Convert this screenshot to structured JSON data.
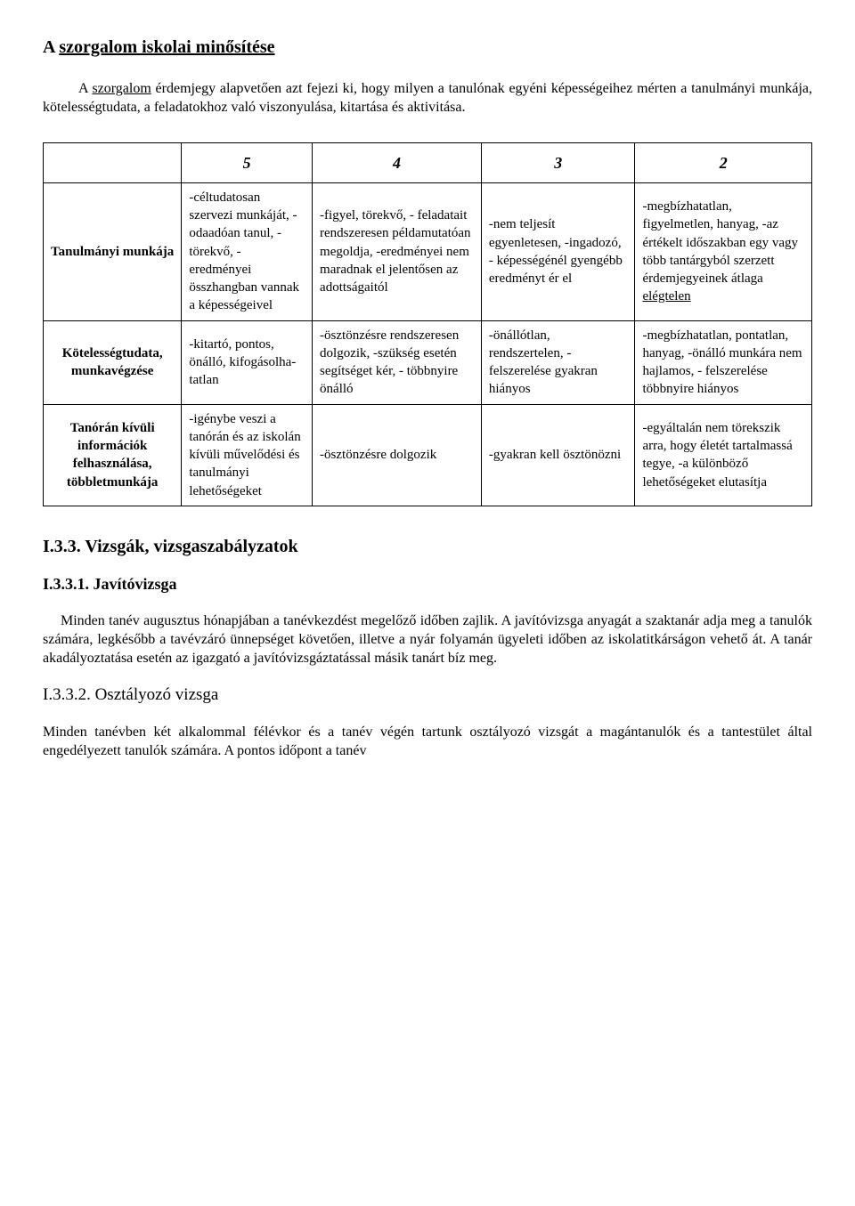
{
  "title_prefix": "A ",
  "title_underlined": "szorgalom iskolai minősítése",
  "intro_prefix": "A ",
  "intro_underlined": "szorgalom",
  "intro_rest": " érdemjegy alapvetően azt fejezi ki, hogy milyen a tanulónak egyéni képességeihez mérten a tanulmányi munkája, kötelességtudata, a feladatokhoz való viszonyulása, kitartása és aktivitása.",
  "grades": [
    "5",
    "4",
    "3",
    "2"
  ],
  "rows": [
    {
      "label": "Tanulmányi munkája",
      "c5": "-céltudatosan szervezi munkáját,\n-odaadóan tanul,\n-törekvő, -\neredményei összhangban vannak a képességeivel",
      "c4": "-figyel, törekvő, -\nfeladatait rendszeresen példamutatóan megoldja,\n-eredményei nem maradnak el jelentősen az adottságaitól",
      "c3": "-nem teljesít egyenletesen,\n-ingadozó, -\nképességénél gyengébb eredményt ér el",
      "c2_plain": "-megbízhatatlan, figyelmetlen, hanyag,\n-az értékelt időszakban egy vagy több tantárgyból szerzett érdemjegyeinek átlaga ",
      "c2_underlined": "elégtelen"
    },
    {
      "label": "Kötelességtudata, munkavégzése",
      "c5": "-kitartó, pontos, önálló, kifogásolha-\ntatlan",
      "c4": "-ösztönzésre rendszeresen dolgozik,\n-szükség esetén segítséget kér, -\ntöbbnyire önálló",
      "c3": "-önállótlan, rendszertelen, -\nfelszerelése gyakran hiányos",
      "c2_plain": "-megbízhatatlan, pontatlan, hanyag,\n-önálló munkára nem hajlamos, -\nfelszerelése többnyire hiányos",
      "c2_underlined": ""
    },
    {
      "label": "Tanórán kívüli információk felhasználása, többletmunkája",
      "c5": "-igénybe veszi a tanórán és az iskolán kívüli művelődési és tanulmányi lehetőségeket",
      "c4": "-ösztönzésre dolgozik",
      "c3": "-gyakran kell ösztönözni",
      "c2_plain": "-egyáltalán nem törekszik arra, hogy életét tartalmassá tegye,\n-a különböző lehetőségeket elutasítja",
      "c2_underlined": ""
    }
  ],
  "section_heading": "I.3.3. Vizsgák, vizsgaszabályzatok",
  "subsection1": "I.3.3.1. Javítóvizsga",
  "para1": "Minden tanév augusztus hónapjában a tanévkezdést megelőző időben zajlik. A javítóvizsga anyagát a szaktanár adja meg a tanulók számára, legkésőbb a tavévzáró ünnepséget követően, illetve a nyár folyamán ügyeleti időben az iskolatitkárságon vehető át.   A tanár akadályoztatása esetén az igazgató a javítóvizsgáztatással másik tanárt bíz meg.",
  "subsection2": "I.3.3.2. Osztályozó vizsga",
  "para2": "Minden tanévben két alkalommal félévkor és a tanév végén tartunk osztályozó vizsgát a magántanulók és a tantestület által engedélyezett tanulók számára. A pontos időpont a tanév"
}
